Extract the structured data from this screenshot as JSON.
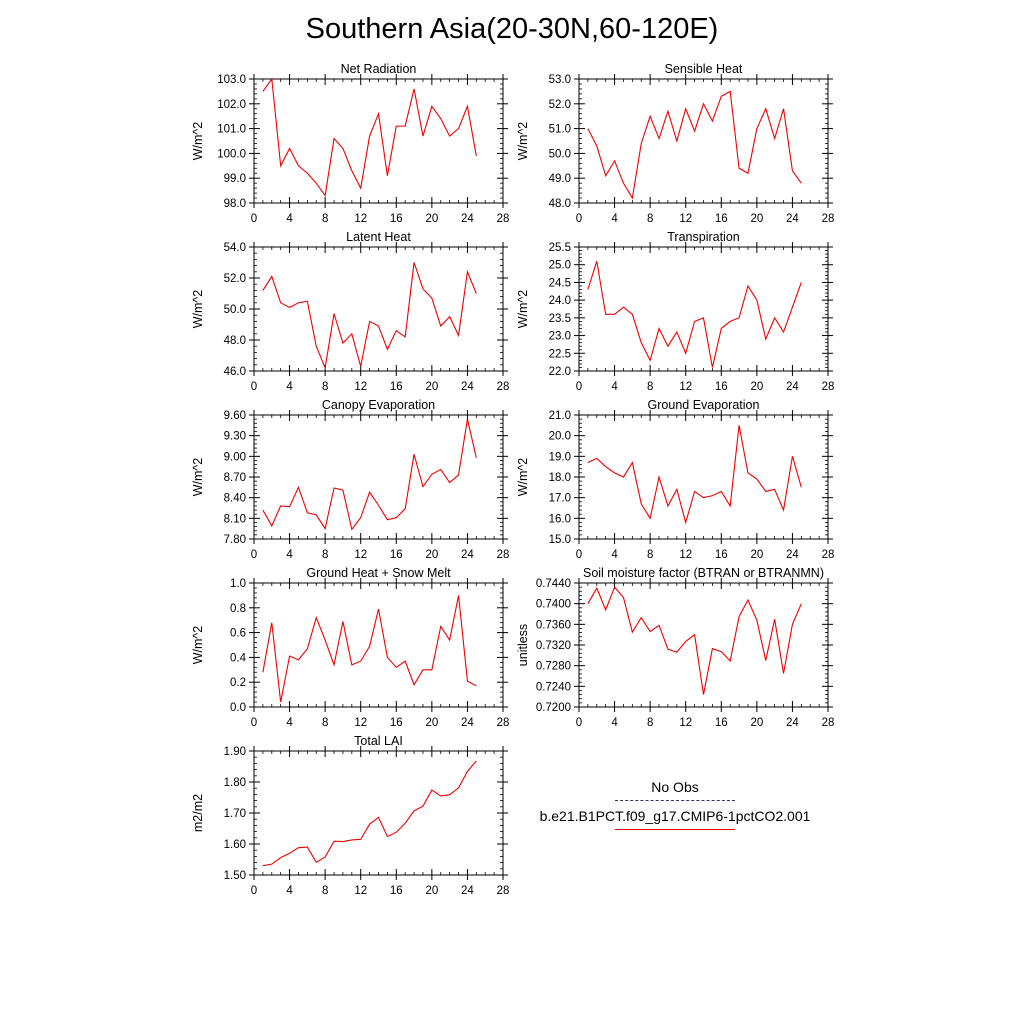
{
  "title": "Southern Asia(20-30N,60-120E)",
  "legend": {
    "obs_label": "No Obs",
    "obs_color": "#333366",
    "model_label": "b.e21.B1PCT.f09_g17.CMIP6-1pctCO2.001",
    "model_color": "#ee0000"
  },
  "chart_data": [
    {
      "type": "line",
      "title": "Net Radiation",
      "ylabel": "W/m^2",
      "xlim": [
        0,
        28
      ],
      "xticks": [
        0,
        4,
        8,
        12,
        16,
        20,
        24,
        28
      ],
      "ylim": [
        98.0,
        103.0
      ],
      "yticks": [
        "98.0",
        "99.0",
        "100.0",
        "101.0",
        "102.0",
        "103.0"
      ],
      "series": [
        {
          "x": [
            1,
            2,
            3,
            4,
            5,
            6,
            7,
            8,
            9,
            10,
            11,
            12,
            13,
            14,
            15,
            16,
            17,
            18,
            19,
            20,
            21,
            22,
            23,
            24,
            25
          ],
          "values": [
            102.5,
            103.0,
            99.5,
            100.2,
            99.5,
            99.2,
            98.8,
            98.3,
            100.6,
            100.2,
            99.3,
            98.6,
            100.7,
            101.6,
            99.1,
            101.1,
            101.1,
            102.6,
            100.7,
            101.9,
            101.4,
            100.7,
            101.0,
            101.9,
            99.9
          ]
        }
      ]
    },
    {
      "type": "line",
      "title": "Sensible Heat",
      "ylabel": "W/m^2",
      "xlim": [
        0,
        28
      ],
      "xticks": [
        0,
        4,
        8,
        12,
        16,
        20,
        24,
        28
      ],
      "ylim": [
        48.0,
        53.0
      ],
      "yticks": [
        "48.0",
        "49.0",
        "50.0",
        "51.0",
        "52.0",
        "53.0"
      ],
      "series": [
        {
          "x": [
            1,
            2,
            3,
            4,
            5,
            6,
            7,
            8,
            9,
            10,
            11,
            12,
            13,
            14,
            15,
            16,
            17,
            18,
            19,
            20,
            21,
            22,
            23,
            24,
            25
          ],
          "values": [
            51.0,
            50.3,
            49.1,
            49.7,
            48.8,
            48.2,
            50.4,
            51.5,
            50.6,
            51.7,
            50.5,
            51.8,
            50.9,
            52.0,
            51.3,
            52.3,
            52.5,
            49.4,
            49.2,
            51.0,
            51.8,
            50.6,
            51.8,
            49.3,
            48.8
          ]
        }
      ]
    },
    {
      "type": "line",
      "title": "Latent Heat",
      "ylabel": "W/m^2",
      "xlim": [
        0,
        28
      ],
      "xticks": [
        0,
        4,
        8,
        12,
        16,
        20,
        24,
        28
      ],
      "ylim": [
        46.0,
        54.0
      ],
      "yticks": [
        "46.0",
        "48.0",
        "50.0",
        "52.0",
        "54.0"
      ],
      "series": [
        {
          "x": [
            1,
            2,
            3,
            4,
            5,
            6,
            7,
            8,
            9,
            10,
            11,
            12,
            13,
            14,
            15,
            16,
            17,
            18,
            19,
            20,
            21,
            22,
            23,
            24,
            25
          ],
          "values": [
            51.2,
            52.1,
            50.4,
            50.1,
            50.4,
            50.5,
            47.6,
            46.2,
            49.7,
            47.8,
            48.4,
            46.3,
            49.2,
            48.9,
            47.4,
            48.6,
            48.2,
            53.0,
            51.3,
            50.7,
            48.9,
            49.5,
            48.3,
            52.4,
            51.0
          ]
        }
      ]
    },
    {
      "type": "line",
      "title": "Transpiration",
      "ylabel": "W/m^2",
      "xlim": [
        0,
        28
      ],
      "xticks": [
        0,
        4,
        8,
        12,
        16,
        20,
        24,
        28
      ],
      "ylim": [
        22.0,
        25.5
      ],
      "yticks": [
        "22.0",
        "22.5",
        "23.0",
        "23.5",
        "24.0",
        "24.5",
        "25.0",
        "25.5"
      ],
      "series": [
        {
          "x": [
            1,
            2,
            3,
            4,
            5,
            6,
            7,
            8,
            9,
            10,
            11,
            12,
            13,
            14,
            15,
            16,
            17,
            18,
            19,
            20,
            21,
            22,
            23,
            24,
            25
          ],
          "values": [
            24.3,
            25.1,
            23.6,
            23.6,
            23.8,
            23.6,
            22.8,
            22.3,
            23.2,
            22.7,
            23.1,
            22.5,
            23.4,
            23.5,
            22.1,
            23.2,
            23.4,
            23.5,
            24.4,
            24.0,
            22.9,
            23.5,
            23.1,
            23.8,
            24.5
          ]
        }
      ]
    },
    {
      "type": "line",
      "title": "Canopy Evaporation",
      "ylabel": "W/m^2",
      "xlim": [
        0,
        28
      ],
      "xticks": [
        0,
        4,
        8,
        12,
        16,
        20,
        24,
        28
      ],
      "ylim": [
        7.8,
        9.6
      ],
      "yticks": [
        "7.80",
        "8.10",
        "8.40",
        "8.70",
        "9.00",
        "9.30",
        "9.60"
      ],
      "series": [
        {
          "x": [
            1,
            2,
            3,
            4,
            5,
            6,
            7,
            8,
            9,
            10,
            11,
            12,
            13,
            14,
            15,
            16,
            17,
            18,
            19,
            20,
            21,
            22,
            23,
            24,
            25
          ],
          "values": [
            8.22,
            7.99,
            8.28,
            8.27,
            8.55,
            8.18,
            8.15,
            7.95,
            8.54,
            8.51,
            7.94,
            8.11,
            8.48,
            8.29,
            8.08,
            8.11,
            8.24,
            9.03,
            8.56,
            8.74,
            8.81,
            8.62,
            8.73,
            9.54,
            8.98
          ]
        }
      ]
    },
    {
      "type": "line",
      "title": "Ground Evaporation",
      "ylabel": "W/m^2",
      "xlim": [
        0,
        28
      ],
      "xticks": [
        0,
        4,
        8,
        12,
        16,
        20,
        24,
        28
      ],
      "ylim": [
        15.0,
        21.0
      ],
      "yticks": [
        "15.0",
        "16.0",
        "17.0",
        "18.0",
        "19.0",
        "20.0",
        "21.0"
      ],
      "series": [
        {
          "x": [
            1,
            2,
            3,
            4,
            5,
            6,
            7,
            8,
            9,
            10,
            11,
            12,
            13,
            14,
            15,
            16,
            17,
            18,
            19,
            20,
            21,
            22,
            23,
            24,
            25
          ],
          "values": [
            18.7,
            18.9,
            18.5,
            18.2,
            18.0,
            18.7,
            16.7,
            16.0,
            18.0,
            16.6,
            17.4,
            15.8,
            17.3,
            17.0,
            17.1,
            17.3,
            16.6,
            20.5,
            18.2,
            17.9,
            17.3,
            17.4,
            16.4,
            19.0,
            17.5
          ]
        }
      ]
    },
    {
      "type": "line",
      "title": "Ground Heat + Snow Melt",
      "ylabel": "W/m^2",
      "xlim": [
        0,
        28
      ],
      "xticks": [
        0,
        4,
        8,
        12,
        16,
        20,
        24,
        28
      ],
      "ylim": [
        0.0,
        1.0
      ],
      "yticks": [
        "0.0",
        "0.2",
        "0.4",
        "0.6",
        "0.8",
        "1.0"
      ],
      "series": [
        {
          "x": [
            1,
            2,
            3,
            4,
            5,
            6,
            7,
            8,
            9,
            10,
            11,
            12,
            13,
            14,
            15,
            16,
            17,
            18,
            19,
            20,
            21,
            22,
            23,
            24,
            25
          ],
          "values": [
            0.28,
            0.68,
            0.04,
            0.41,
            0.38,
            0.47,
            0.72,
            0.54,
            0.34,
            0.69,
            0.34,
            0.37,
            0.49,
            0.79,
            0.4,
            0.32,
            0.37,
            0.18,
            0.3,
            0.3,
            0.65,
            0.54,
            0.9,
            0.21,
            0.17
          ]
        }
      ]
    },
    {
      "type": "line",
      "title": "Soil moisture factor (BTRAN or BTRANMN)",
      "ylabel": "unitless",
      "xlim": [
        0,
        28
      ],
      "xticks": [
        0,
        4,
        8,
        12,
        16,
        20,
        24,
        28
      ],
      "ylim": [
        0.72,
        0.744
      ],
      "yticks": [
        "0.7200",
        "0.7240",
        "0.7280",
        "0.7320",
        "0.7360",
        "0.7400",
        "0.7440"
      ],
      "series": [
        {
          "x": [
            1,
            2,
            3,
            4,
            5,
            6,
            7,
            8,
            9,
            10,
            11,
            12,
            13,
            14,
            15,
            16,
            17,
            18,
            19,
            20,
            21,
            22,
            23,
            24,
            25
          ],
          "values": [
            0.74,
            0.743,
            0.7388,
            0.7432,
            0.7412,
            0.7345,
            0.7373,
            0.7346,
            0.7358,
            0.7312,
            0.7306,
            0.7327,
            0.734,
            0.7224,
            0.7313,
            0.7307,
            0.7289,
            0.7375,
            0.7407,
            0.7368,
            0.729,
            0.737,
            0.7265,
            0.736,
            0.74
          ]
        }
      ]
    },
    {
      "type": "line",
      "title": "Total LAI",
      "ylabel": "m2/m2",
      "xlim": [
        0,
        28
      ],
      "xticks": [
        0,
        4,
        8,
        12,
        16,
        20,
        24,
        28
      ],
      "ylim": [
        1.5,
        1.9
      ],
      "yticks": [
        "1.50",
        "1.60",
        "1.70",
        "1.80",
        "1.90"
      ],
      "series": [
        {
          "x": [
            1,
            2,
            3,
            4,
            5,
            6,
            7,
            8,
            9,
            10,
            11,
            12,
            13,
            14,
            15,
            16,
            17,
            18,
            19,
            20,
            21,
            22,
            23,
            24,
            25
          ],
          "values": [
            1.53,
            1.535,
            1.556,
            1.57,
            1.588,
            1.59,
            1.541,
            1.558,
            1.609,
            1.608,
            1.613,
            1.615,
            1.664,
            1.686,
            1.624,
            1.638,
            1.667,
            1.707,
            1.722,
            1.774,
            1.755,
            1.759,
            1.781,
            1.834,
            1.868
          ]
        }
      ]
    }
  ]
}
